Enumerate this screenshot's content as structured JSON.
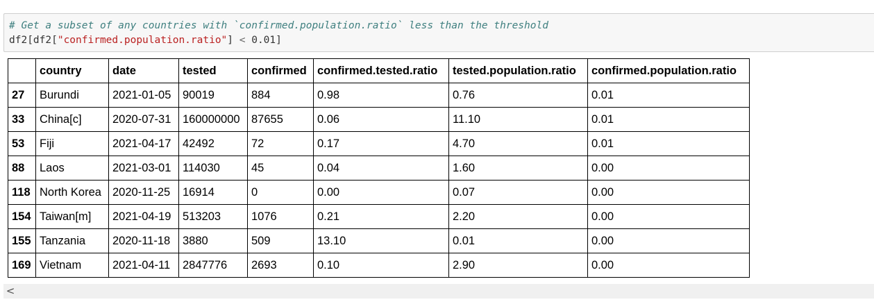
{
  "code": {
    "comment": "# Get a subset of any countries with `confirmed.population.ratio` less than the threshold",
    "line2_part1": "df2[df2[",
    "line2_string": "\"confirmed.population.ratio\"",
    "line2_part2": "] ",
    "line2_operator": "<",
    "line2_value": " 0.01]"
  },
  "table": {
    "columns": [
      "",
      "country",
      "date",
      "tested",
      "confirmed",
      "confirmed.tested.ratio",
      "tested.population.ratio",
      "confirmed.population.ratio"
    ],
    "rows": [
      [
        "27",
        "Burundi",
        "2021-01-05",
        "90019",
        "884",
        "0.98",
        "0.76",
        "0.01"
      ],
      [
        "33",
        "China[c]",
        "2020-07-31",
        "160000000",
        "87655",
        "0.06",
        "11.10",
        "0.01"
      ],
      [
        "53",
        "Fiji",
        "2021-04-17",
        "42492",
        "72",
        "0.17",
        "4.70",
        "0.01"
      ],
      [
        "88",
        "Laos",
        "2021-03-01",
        "114030",
        "45",
        "0.04",
        "1.60",
        "0.00"
      ],
      [
        "118",
        "North Korea",
        "2020-11-25",
        "16914",
        "0",
        "0.00",
        "0.07",
        "0.00"
      ],
      [
        "154",
        "Taiwan[m]",
        "2021-04-19",
        "513203",
        "1076",
        "0.21",
        "2.20",
        "0.00"
      ],
      [
        "155",
        "Tanzania",
        "2020-11-18",
        "3880",
        "509",
        "13.10",
        "0.01",
        "0.00"
      ],
      [
        "169",
        "Vietnam",
        "2021-04-11",
        "2847776",
        "2693",
        "0.10",
        "2.90",
        "0.00"
      ]
    ]
  },
  "scrollbar": {
    "left_arrow_icon": "chevron-left-icon",
    "left_arrow_glyph": "<"
  }
}
